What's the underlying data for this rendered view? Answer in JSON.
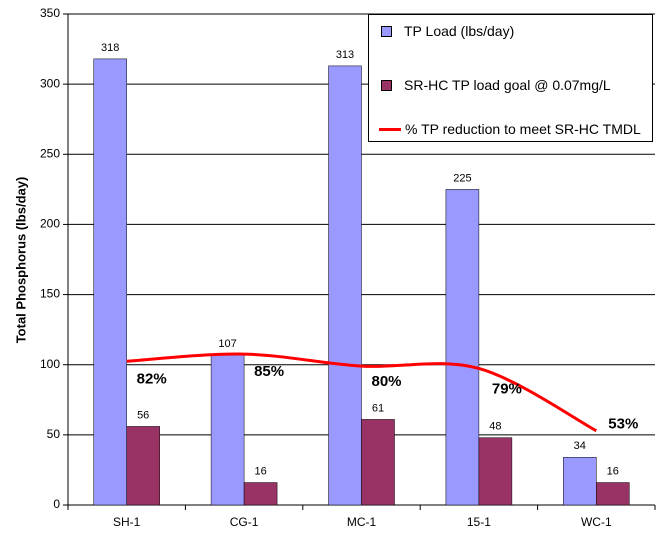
{
  "chart_data": {
    "type": "bar",
    "y_label": "Total Phosphorus (lbs/day)",
    "categories": [
      "SH-1",
      "CG-1",
      "MC-1",
      "15-1",
      "WC-1"
    ],
    "series": [
      {
        "name": "TP Load (lbs/day)",
        "color": "#9999ff",
        "values": [
          318,
          107,
          313,
          225,
          34
        ]
      },
      {
        "name": "SR-HC TP load goal @ 0.07mg/L",
        "color": "#993366",
        "values": [
          56,
          16,
          61,
          48,
          16
        ]
      },
      {
        "name": "% TP reduction to meet SR-HC TMDL",
        "type": "line",
        "axis": "y2",
        "color": "#ff0000",
        "values": [
          82,
          85,
          80,
          79,
          53
        ],
        "value_labels": [
          "82%",
          "85%",
          "80%",
          "79%",
          "53%"
        ]
      }
    ],
    "ylim": [
      0,
      350
    ],
    "yticks": [
      0,
      50,
      100,
      150,
      200,
      250,
      300,
      350
    ],
    "y2lim": [
      22,
      227
    ],
    "grid": true,
    "legend": "upper right"
  }
}
